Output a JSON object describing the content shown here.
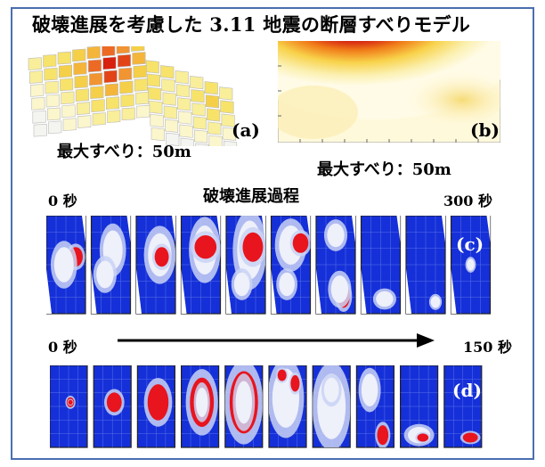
{
  "title": "破壊進展を考慮した 3.11 地震の断層すべりモデル",
  "figure_a": {
    "label": "(a)",
    "max_slip": "最大すべり：50m"
  },
  "figure_b": {
    "label": "(b)",
    "max_slip": "最大すべり：50m"
  },
  "row_c": {
    "title": "破壊進展過程",
    "start": "0 秒",
    "end": "300 秒",
    "label": "(c)"
  },
  "row_d": {
    "start": "0 秒",
    "end": "150 秒",
    "label": "(d)"
  },
  "colors": {
    "border": "#4a6fb0",
    "panel_blue": "#1530d8",
    "slip_red": "#e8141e",
    "slip_yellow": "#f7e26a"
  }
}
